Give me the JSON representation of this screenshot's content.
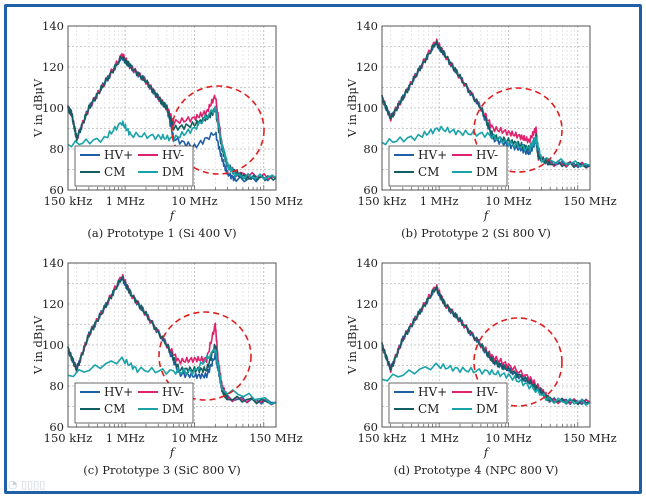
{
  "watermark": "大数跨境",
  "colors": {
    "HV+": "#1f5fa8",
    "HV-": "#e0226e",
    "CM": "#135e62",
    "DM": "#19a3a8",
    "highlight": "#e02020",
    "frame": "#1f5fa8"
  },
  "chart_data": [
    {
      "type": "line",
      "caption": "(a) Prototype 1 (Si 400 V)",
      "xlabel": "f",
      "ylabel": "V in dBμV",
      "xscale": "log",
      "xlim_MHz": [
        0.15,
        150
      ],
      "ylim": [
        60,
        140
      ],
      "xticks": [
        {
          "v": 0.15,
          "label": "150 kHz"
        },
        {
          "v": 1,
          "label": "1 MHz"
        },
        {
          "v": 10,
          "label": "10 MHz"
        },
        {
          "v": 150,
          "label": "150 MHz"
        }
      ],
      "yticks": [
        60,
        80,
        100,
        120,
        140
      ],
      "grid": true,
      "legend": "bottom-left",
      "series": [
        {
          "name": "HV+",
          "f_MHz": [
            0.15,
            0.17,
            0.2,
            0.3,
            0.5,
            0.9,
            1.2,
            2,
            3,
            4,
            5,
            10,
            20,
            25,
            30,
            40,
            150
          ],
          "dB": [
            100,
            97,
            85,
            100,
            112,
            125,
            120,
            113,
            105,
            100,
            85,
            81,
            88,
            75,
            68,
            65,
            66
          ]
        },
        {
          "name": "HV-",
          "f_MHz": [
            0.15,
            0.17,
            0.2,
            0.3,
            0.5,
            0.9,
            1.2,
            2,
            3,
            4,
            5,
            10,
            15,
            20,
            25,
            30,
            40,
            150
          ],
          "dB": [
            100,
            97,
            85,
            100,
            112,
            126,
            120,
            113,
            105,
            100,
            93,
            95,
            98,
            106,
            82,
            72,
            68,
            66
          ]
        },
        {
          "name": "CM",
          "f_MHz": [
            0.15,
            0.17,
            0.2,
            0.3,
            0.5,
            0.9,
            1.2,
            2,
            3,
            4,
            5,
            10,
            15,
            20,
            25,
            30,
            40,
            60,
            150
          ],
          "dB": [
            100,
            97,
            85,
            100,
            112,
            125,
            120,
            113,
            105,
            100,
            90,
            92,
            95,
            99,
            80,
            72,
            68,
            66,
            66
          ]
        },
        {
          "name": "DM",
          "f_MHz": [
            0.15,
            0.5,
            0.9,
            1.2,
            3,
            5,
            10,
            20,
            25,
            30,
            40,
            150
          ],
          "dB": [
            82,
            85,
            93,
            87,
            86,
            85,
            90,
            100,
            82,
            72,
            67,
            66
          ]
        }
      ]
    },
    {
      "type": "line",
      "caption": "(b) Prototype 2 (Si 800 V)",
      "xlabel": "f",
      "ylabel": "V in dBμV",
      "xscale": "log",
      "xlim_MHz": [
        0.15,
        150
      ],
      "ylim": [
        60,
        140
      ],
      "xticks": [
        {
          "v": 0.15,
          "label": "150 kHz"
        },
        {
          "v": 1,
          "label": "1 MHz"
        },
        {
          "v": 10,
          "label": "10 MHz"
        },
        {
          "v": 150,
          "label": "150 MHz"
        }
      ],
      "yticks": [
        60,
        80,
        100,
        120,
        140
      ],
      "grid": true,
      "legend": "bottom-left",
      "series": [
        {
          "name": "HV+",
          "f_MHz": [
            0.15,
            0.2,
            0.3,
            0.5,
            0.9,
            1.2,
            2,
            4,
            6,
            10,
            15,
            20,
            25,
            27,
            40,
            150
          ],
          "dB": [
            105,
            95,
            105,
            118,
            132,
            126,
            115,
            100,
            85,
            82,
            80,
            78,
            84,
            76,
            73,
            72
          ]
        },
        {
          "name": "HV-",
          "f_MHz": [
            0.15,
            0.2,
            0.3,
            0.5,
            0.9,
            1.2,
            2,
            4,
            6,
            10,
            15,
            20,
            25,
            27,
            40,
            150
          ],
          "dB": [
            105,
            95,
            105,
            118,
            133,
            126,
            115,
            100,
            90,
            88,
            86,
            84,
            90,
            76,
            73,
            72
          ]
        },
        {
          "name": "CM",
          "f_MHz": [
            0.15,
            0.2,
            0.3,
            0.5,
            0.9,
            1.2,
            2,
            4,
            6,
            10,
            15,
            20,
            25,
            27,
            40,
            150
          ],
          "dB": [
            105,
            95,
            105,
            118,
            132,
            126,
            115,
            100,
            86,
            84,
            82,
            80,
            86,
            76,
            73,
            72
          ]
        },
        {
          "name": "DM",
          "f_MHz": [
            0.15,
            0.5,
            1,
            2,
            5,
            10,
            20,
            25,
            30,
            150
          ],
          "dB": [
            83,
            86,
            90,
            88,
            87,
            83,
            80,
            85,
            75,
            72
          ]
        }
      ]
    },
    {
      "type": "line",
      "caption": "(c) Prototype 3 (SiC 800 V)",
      "xlabel": "f",
      "ylabel": "V in dBμV",
      "xscale": "log",
      "xlim_MHz": [
        0.15,
        150
      ],
      "ylim": [
        60,
        140
      ],
      "xticks": [
        {
          "v": 0.15,
          "label": "150 kHz"
        },
        {
          "v": 1,
          "label": "1 MHz"
        },
        {
          "v": 10,
          "label": "10 MHz"
        },
        {
          "v": 150,
          "label": "150 MHz"
        }
      ],
      "yticks": [
        60,
        80,
        100,
        120,
        140
      ],
      "grid": true,
      "legend": "bottom-left",
      "series": [
        {
          "name": "HV+",
          "f_MHz": [
            0.15,
            0.2,
            0.3,
            0.5,
            0.9,
            1.2,
            2,
            4,
            6,
            10,
            15,
            20,
            22,
            25,
            30,
            150
          ],
          "dB": [
            98,
            88,
            105,
            118,
            133,
            125,
            115,
            100,
            86,
            85,
            85,
            95,
            88,
            78,
            74,
            72
          ]
        },
        {
          "name": "HV-",
          "f_MHz": [
            0.15,
            0.2,
            0.3,
            0.5,
            0.9,
            1.2,
            2,
            4,
            6,
            10,
            15,
            20,
            22,
            25,
            30,
            150
          ],
          "dB": [
            98,
            88,
            105,
            118,
            134,
            125,
            115,
            100,
            92,
            93,
            93,
            110,
            92,
            80,
            74,
            72
          ]
        },
        {
          "name": "CM",
          "f_MHz": [
            0.15,
            0.2,
            0.3,
            0.5,
            0.9,
            1.2,
            2,
            4,
            6,
            10,
            15,
            20,
            22,
            25,
            30,
            150
          ],
          "dB": [
            98,
            88,
            105,
            118,
            133,
            125,
            115,
            100,
            88,
            88,
            88,
            100,
            90,
            78,
            74,
            72
          ]
        },
        {
          "name": "DM",
          "f_MHz": [
            0.15,
            0.9,
            1.5,
            5,
            10,
            20,
            25,
            150
          ],
          "dB": [
            85,
            93,
            88,
            87,
            87,
            98,
            78,
            72
          ]
        }
      ]
    },
    {
      "type": "line",
      "caption": "(d) Prototype 4 (NPC 800 V)",
      "xlabel": "f",
      "ylabel": "V in dBμV",
      "xscale": "log",
      "xlim_MHz": [
        0.15,
        150
      ],
      "ylim": [
        60,
        140
      ],
      "xticks": [
        {
          "v": 0.15,
          "label": "150 kHz"
        },
        {
          "v": 1,
          "label": "1 MHz"
        },
        {
          "v": 10,
          "label": "10 MHz"
        },
        {
          "v": 150,
          "label": "150 MHz"
        }
      ],
      "yticks": [
        60,
        80,
        100,
        120,
        140
      ],
      "grid": true,
      "legend": "bottom-left",
      "series": [
        {
          "name": "HV+",
          "f_MHz": [
            0.15,
            0.2,
            0.3,
            0.5,
            0.9,
            1.2,
            2,
            4,
            6,
            10,
            20,
            30,
            40,
            150
          ],
          "dB": [
            100,
            88,
            103,
            115,
            128,
            120,
            112,
            100,
            92,
            88,
            82,
            77,
            73,
            72
          ]
        },
        {
          "name": "HV-",
          "f_MHz": [
            0.15,
            0.2,
            0.3,
            0.5,
            0.9,
            1.2,
            2,
            4,
            6,
            10,
            20,
            30,
            40,
            150
          ],
          "dB": [
            100,
            88,
            103,
            115,
            129,
            120,
            112,
            100,
            94,
            90,
            84,
            78,
            73,
            72
          ]
        },
        {
          "name": "CM",
          "f_MHz": [
            0.15,
            0.2,
            0.3,
            0.5,
            0.9,
            1.2,
            2,
            4,
            6,
            10,
            20,
            30,
            40,
            150
          ],
          "dB": [
            100,
            88,
            103,
            115,
            128,
            120,
            112,
            100,
            92,
            88,
            82,
            77,
            73,
            72
          ]
        },
        {
          "name": "DM",
          "f_MHz": [
            0.15,
            0.9,
            2,
            5,
            10,
            20,
            40,
            150
          ],
          "dB": [
            83,
            90,
            88,
            87,
            85,
            80,
            73,
            72
          ]
        }
      ]
    }
  ]
}
